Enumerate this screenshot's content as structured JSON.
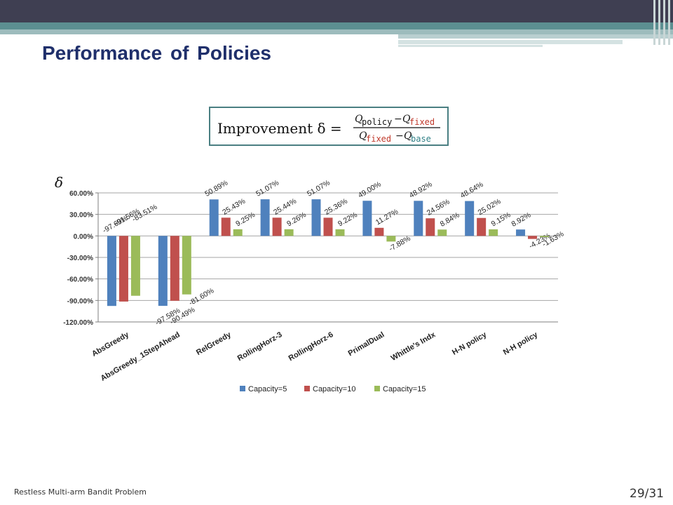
{
  "slide": {
    "title": "Performance of Policies",
    "footer_left": "Restless Multi-arm Bandit Problem",
    "page_number": "29/31"
  },
  "formula": {
    "lhs": "Improvement δ =",
    "num_a": "Q",
    "num_a_sub": "policy",
    "num_b": "Q",
    "num_b_sub": "fixed",
    "den_a": "Q",
    "den_a_sub": "fixed",
    "den_b": "Q",
    "den_b_sub": "base",
    "minus": "−"
  },
  "axis_symbol": "δ",
  "colors": {
    "series": [
      "#4f81bd",
      "#c0504d",
      "#9bbb59"
    ],
    "red_text": "#c0392b",
    "teal_text": "#2e7f85",
    "formula_border": "#4a7f82",
    "title": "#1f2f6b"
  },
  "chart_data": {
    "type": "bar",
    "categories": [
      "AbsGreedy",
      "AbsGreedy_1StepAhead",
      "RelGreedy",
      "RollingHorz-3",
      "RollingHorz-6",
      "PrimalDual",
      "Whittle's Indx",
      "H-N policy",
      "N-H policy"
    ],
    "series": [
      {
        "name": "Capacity=5",
        "values": [
          -97.69,
          -97.58,
          50.89,
          51.07,
          51.07,
          49.0,
          48.92,
          48.64,
          8.92
        ],
        "labels": [
          "-97.69%",
          "-97.58%",
          "50.89%",
          "51.07%",
          "51.07%",
          "49.00%",
          "48.92%",
          "48.64%",
          "8.92%"
        ]
      },
      {
        "name": "Capacity=10",
        "values": [
          -91.56,
          -90.49,
          25.43,
          25.44,
          25.36,
          11.27,
          24.56,
          25.02,
          -4.23
        ],
        "labels": [
          "-91.56%",
          "-90.49%",
          "25.43%",
          "25.44%",
          "25.36%",
          "11.27%",
          "24.56%",
          "25.02%",
          "-4.23%"
        ]
      },
      {
        "name": "Capacity=15",
        "values": [
          -83.51,
          -81.6,
          9.25,
          9.26,
          9.22,
          -7.88,
          8.84,
          9.15,
          -1.63
        ],
        "labels": [
          "-83.51%",
          "-81.60%",
          "9.25%",
          "9.26%",
          "9.22%",
          "-7.88%",
          "8.84%",
          "9.15%",
          "-1.63%"
        ]
      }
    ],
    "y_ticks": [
      "60.00%",
      "30.00%",
      "0.00%",
      "-30.00%",
      "-60.00%",
      "-90.00%",
      "-120.00%"
    ],
    "y_tick_values": [
      60,
      30,
      0,
      -30,
      -60,
      -90,
      -120
    ],
    "ylim": [
      -120,
      60
    ],
    "grid": true,
    "legend_position": "bottom"
  }
}
